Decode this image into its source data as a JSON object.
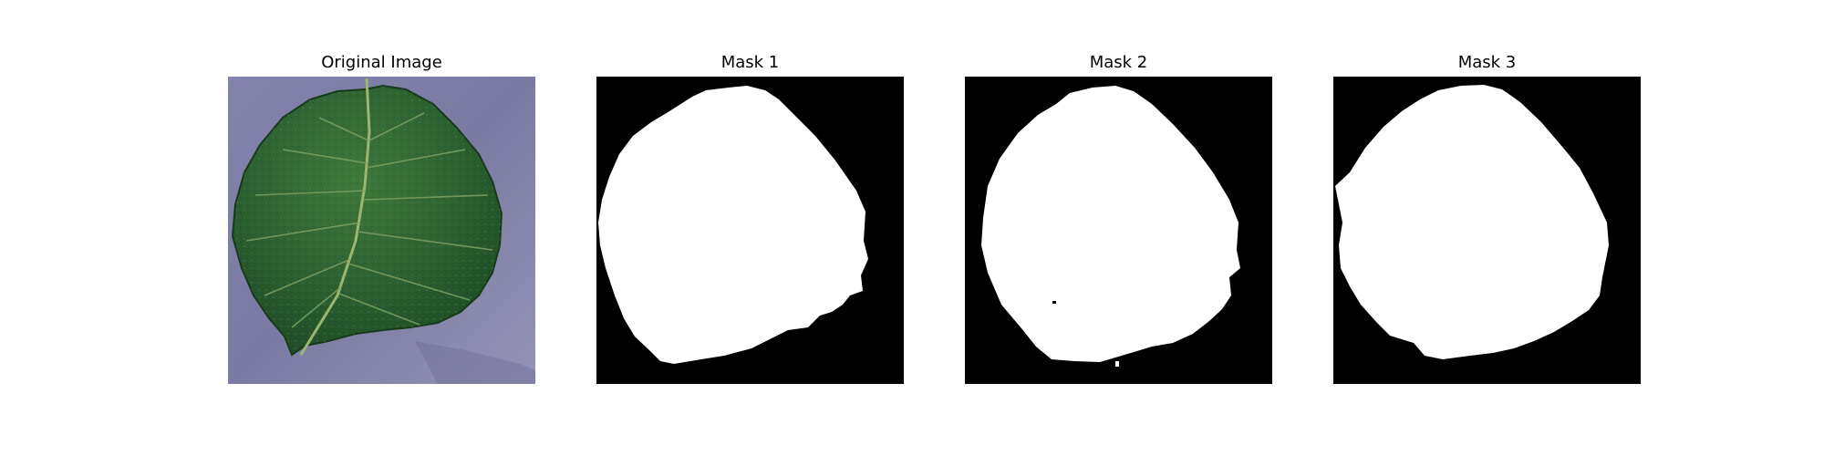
{
  "figure": {
    "panels": [
      {
        "title": "Original Image"
      },
      {
        "title": "Mask 1"
      },
      {
        "title": "Mask 2"
      },
      {
        "title": "Mask 3"
      }
    ]
  },
  "colors": {
    "figure_background": "#ffffff",
    "mask_background": "#000000",
    "mask_foreground": "#ffffff",
    "photo_background": "#7d7ca4",
    "leaf_dark": "#1f4a22",
    "leaf_mid": "#2f6a32",
    "leaf_light": "#4f8a48",
    "leaf_vein": "#8fae6c"
  }
}
